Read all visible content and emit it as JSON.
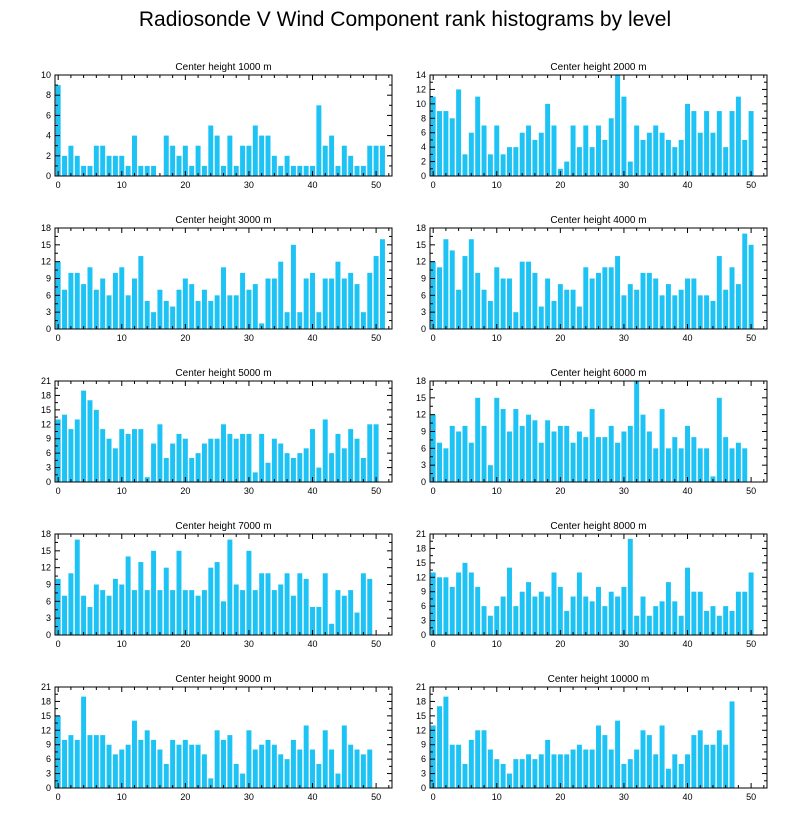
{
  "title": "Radiosonde V Wind Component rank histograms by level",
  "bar_color": "#1ec3f5",
  "chart_data": [
    {
      "type": "bar",
      "title": "Center height 1000 m",
      "ylim": [
        0,
        10
      ],
      "yticks": [
        0,
        2,
        4,
        6,
        8,
        10
      ],
      "xticks": [
        0,
        10,
        20,
        30,
        40,
        50
      ],
      "categories": [
        0,
        1,
        2,
        3,
        4,
        5,
        6,
        7,
        8,
        9,
        10,
        11,
        12,
        13,
        14,
        15,
        16,
        17,
        18,
        19,
        20,
        21,
        22,
        23,
        24,
        25,
        26,
        27,
        28,
        29,
        30,
        31,
        32,
        33,
        34,
        35,
        36,
        37,
        38,
        39,
        40,
        41,
        42,
        43,
        44,
        45,
        46,
        47,
        48,
        49,
        50,
        51
      ],
      "values": [
        9,
        2,
        3,
        2,
        1,
        1,
        3,
        3,
        2,
        2,
        2,
        1,
        4,
        1,
        1,
        1,
        0,
        4,
        3,
        2,
        3,
        1,
        3,
        1,
        5,
        4,
        1,
        4,
        1,
        3,
        3,
        5,
        4,
        4,
        2,
        1,
        2,
        1,
        1,
        1,
        1,
        7,
        3,
        4,
        1,
        3,
        2,
        1,
        1,
        3,
        3,
        3
      ]
    },
    {
      "type": "bar",
      "title": "Center height 2000 m",
      "ylim": [
        0,
        14
      ],
      "yticks": [
        0,
        2,
        4,
        6,
        8,
        10,
        12,
        14
      ],
      "xticks": [
        0,
        10,
        20,
        30,
        40,
        50
      ],
      "categories": [
        0,
        1,
        2,
        3,
        4,
        5,
        6,
        7,
        8,
        9,
        10,
        11,
        12,
        13,
        14,
        15,
        16,
        17,
        18,
        19,
        20,
        21,
        22,
        23,
        24,
        25,
        26,
        27,
        28,
        29,
        30,
        31,
        32,
        33,
        34,
        35,
        36,
        37,
        38,
        39,
        40,
        41,
        42,
        43,
        44,
        45,
        46,
        47,
        48,
        49,
        50,
        51
      ],
      "values": [
        11,
        9,
        9,
        8,
        12,
        3,
        6,
        11,
        7,
        3,
        7,
        3,
        4,
        4,
        6,
        7,
        5,
        6,
        10,
        7,
        1,
        2,
        7,
        4,
        7,
        4,
        7,
        5,
        8,
        14,
        11,
        2,
        7,
        5,
        6,
        7,
        6,
        5,
        4,
        5,
        10,
        9,
        6,
        9,
        6,
        9,
        4,
        9,
        11,
        5,
        9,
        0
      ]
    },
    {
      "type": "bar",
      "title": "Center height 3000 m",
      "ylim": [
        0,
        18
      ],
      "yticks": [
        0,
        3,
        6,
        9,
        12,
        15,
        18
      ],
      "xticks": [
        0,
        10,
        20,
        30,
        40,
        50
      ],
      "categories": [
        0,
        1,
        2,
        3,
        4,
        5,
        6,
        7,
        8,
        9,
        10,
        11,
        12,
        13,
        14,
        15,
        16,
        17,
        18,
        19,
        20,
        21,
        22,
        23,
        24,
        25,
        26,
        27,
        28,
        29,
        30,
        31,
        32,
        33,
        34,
        35,
        36,
        37,
        38,
        39,
        40,
        41,
        42,
        43,
        44,
        45,
        46,
        47,
        48,
        49,
        50,
        51
      ],
      "values": [
        12,
        7,
        10,
        10,
        8,
        11,
        7,
        9,
        6,
        10,
        11,
        6,
        9,
        13,
        5,
        3,
        7,
        5,
        4,
        7,
        9,
        8,
        5,
        7,
        5,
        6,
        11,
        6,
        6,
        10,
        7,
        8,
        1,
        9,
        9,
        12,
        3,
        15,
        3,
        9,
        10,
        3,
        9,
        9,
        12,
        9,
        10,
        8,
        3,
        10,
        13,
        16
      ]
    },
    {
      "type": "bar",
      "title": "Center height 4000 m",
      "ylim": [
        0,
        18
      ],
      "yticks": [
        0,
        3,
        6,
        9,
        12,
        15,
        18
      ],
      "xticks": [
        0,
        10,
        20,
        30,
        40,
        50
      ],
      "categories": [
        0,
        1,
        2,
        3,
        4,
        5,
        6,
        7,
        8,
        9,
        10,
        11,
        12,
        13,
        14,
        15,
        16,
        17,
        18,
        19,
        20,
        21,
        22,
        23,
        24,
        25,
        26,
        27,
        28,
        29,
        30,
        31,
        32,
        33,
        34,
        35,
        36,
        37,
        38,
        39,
        40,
        41,
        42,
        43,
        44,
        45,
        46,
        47,
        48,
        49,
        50,
        51
      ],
      "values": [
        12,
        11,
        16,
        14,
        7,
        13,
        16,
        10,
        7,
        5,
        11,
        9,
        9,
        3,
        12,
        12,
        10,
        4,
        9,
        5,
        8,
        7,
        7,
        4,
        11,
        9,
        10,
        11,
        11,
        13,
        6,
        8,
        7,
        10,
        10,
        9,
        6,
        8,
        6,
        7,
        9,
        9,
        6,
        6,
        5,
        13,
        7,
        11,
        8,
        17,
        15,
        0
      ]
    },
    {
      "type": "bar",
      "title": "Center height 5000 m",
      "ylim": [
        0,
        21
      ],
      "yticks": [
        0,
        3,
        6,
        9,
        12,
        15,
        18,
        21
      ],
      "xticks": [
        0,
        10,
        20,
        30,
        40,
        50
      ],
      "categories": [
        0,
        1,
        2,
        3,
        4,
        5,
        6,
        7,
        8,
        9,
        10,
        11,
        12,
        13,
        14,
        15,
        16,
        17,
        18,
        19,
        20,
        21,
        22,
        23,
        24,
        25,
        26,
        27,
        28,
        29,
        30,
        31,
        32,
        33,
        34,
        35,
        36,
        37,
        38,
        39,
        40,
        41,
        42,
        43,
        44,
        45,
        46,
        47,
        48,
        49,
        50,
        51
      ],
      "values": [
        13,
        14,
        11,
        13,
        19,
        17,
        15,
        11,
        9,
        7,
        11,
        10,
        11,
        11,
        1,
        8,
        12,
        5,
        8,
        10,
        9,
        5,
        6,
        8,
        9,
        9,
        12,
        10,
        9,
        10,
        10,
        2,
        10,
        4,
        9,
        8,
        6,
        5,
        6,
        7,
        11,
        3,
        13,
        6,
        10,
        7,
        11,
        9,
        5,
        12,
        12,
        0
      ]
    },
    {
      "type": "bar",
      "title": "Center height 6000 m",
      "ylim": [
        0,
        18
      ],
      "yticks": [
        0,
        3,
        6,
        9,
        12,
        15,
        18
      ],
      "xticks": [
        0,
        10,
        20,
        30,
        40,
        50
      ],
      "categories": [
        0,
        1,
        2,
        3,
        4,
        5,
        6,
        7,
        8,
        9,
        10,
        11,
        12,
        13,
        14,
        15,
        16,
        17,
        18,
        19,
        20,
        21,
        22,
        23,
        24,
        25,
        26,
        27,
        28,
        29,
        30,
        31,
        32,
        33,
        34,
        35,
        36,
        37,
        38,
        39,
        40,
        41,
        42,
        43,
        44,
        45,
        46,
        47,
        48,
        49,
        50,
        51
      ],
      "values": [
        12,
        7,
        6,
        10,
        9,
        10,
        7,
        15,
        10,
        3,
        15,
        13,
        9,
        13,
        10,
        12,
        11,
        7,
        11,
        9,
        10,
        10,
        7,
        9,
        8,
        13,
        8,
        8,
        10,
        7,
        9,
        10,
        18,
        12,
        9,
        6,
        13,
        6,
        8,
        6,
        10,
        8,
        6,
        6,
        1,
        15,
        8,
        6,
        7,
        6,
        0,
        0
      ]
    },
    {
      "type": "bar",
      "title": "Center height 7000 m",
      "ylim": [
        0,
        18
      ],
      "yticks": [
        0,
        3,
        6,
        9,
        12,
        15,
        18
      ],
      "xticks": [
        0,
        10,
        20,
        30,
        40,
        50
      ],
      "categories": [
        0,
        1,
        2,
        3,
        4,
        5,
        6,
        7,
        8,
        9,
        10,
        11,
        12,
        13,
        14,
        15,
        16,
        17,
        18,
        19,
        20,
        21,
        22,
        23,
        24,
        25,
        26,
        27,
        28,
        29,
        30,
        31,
        32,
        33,
        34,
        35,
        36,
        37,
        38,
        39,
        40,
        41,
        42,
        43,
        44,
        45,
        46,
        47,
        48,
        49,
        50,
        51
      ],
      "values": [
        10,
        7,
        11,
        17,
        7,
        5,
        9,
        8,
        7,
        10,
        9,
        14,
        8,
        13,
        8,
        15,
        8,
        12,
        8,
        15,
        8,
        8,
        7,
        8,
        12,
        13,
        6,
        17,
        9,
        8,
        15,
        8,
        11,
        11,
        8,
        9,
        11,
        7,
        11,
        10,
        5,
        5,
        11,
        2,
        8,
        7,
        8,
        4,
        11,
        10,
        0,
        0
      ]
    },
    {
      "type": "bar",
      "title": "Center height 8000 m",
      "ylim": [
        0,
        21
      ],
      "yticks": [
        0,
        3,
        6,
        9,
        12,
        15,
        18,
        21
      ],
      "xticks": [
        0,
        10,
        20,
        30,
        40,
        50
      ],
      "categories": [
        0,
        1,
        2,
        3,
        4,
        5,
        6,
        7,
        8,
        9,
        10,
        11,
        12,
        13,
        14,
        15,
        16,
        17,
        18,
        19,
        20,
        21,
        22,
        23,
        24,
        25,
        26,
        27,
        28,
        29,
        30,
        31,
        32,
        33,
        34,
        35,
        36,
        37,
        38,
        39,
        40,
        41,
        42,
        43,
        44,
        45,
        46,
        47,
        48,
        49,
        50,
        51
      ],
      "values": [
        13,
        12,
        12,
        10,
        13,
        15,
        13,
        10,
        6,
        4,
        6,
        8,
        14,
        6,
        9,
        11,
        8,
        9,
        8,
        13,
        10,
        5,
        8,
        13,
        8,
        7,
        10,
        6,
        9,
        8,
        10,
        20,
        4,
        8,
        4,
        6,
        7,
        11,
        7,
        4,
        14,
        9,
        9,
        5,
        6,
        4,
        6,
        5,
        9,
        9,
        13,
        0
      ]
    },
    {
      "type": "bar",
      "title": "Center height 9000 m",
      "ylim": [
        0,
        21
      ],
      "yticks": [
        0,
        3,
        6,
        9,
        12,
        15,
        18,
        21
      ],
      "xticks": [
        0,
        10,
        20,
        30,
        40,
        50
      ],
      "categories": [
        0,
        1,
        2,
        3,
        4,
        5,
        6,
        7,
        8,
        9,
        10,
        11,
        12,
        13,
        14,
        15,
        16,
        17,
        18,
        19,
        20,
        21,
        22,
        23,
        24,
        25,
        26,
        27,
        28,
        29,
        30,
        31,
        32,
        33,
        34,
        35,
        36,
        37,
        38,
        39,
        40,
        41,
        42,
        43,
        44,
        45,
        46,
        47,
        48,
        49,
        50,
        51
      ],
      "values": [
        15,
        10,
        11,
        10,
        19,
        11,
        11,
        11,
        9,
        7,
        8,
        9,
        14,
        10,
        12,
        10,
        8,
        5,
        10,
        9,
        10,
        9,
        9,
        7,
        2,
        12,
        10,
        11,
        5,
        3,
        12,
        8,
        9,
        10,
        9,
        7,
        6,
        10,
        8,
        13,
        8,
        5,
        12,
        8,
        3,
        13,
        9,
        8,
        7,
        8,
        0,
        0
      ]
    },
    {
      "type": "bar",
      "title": "Center height 10000 m",
      "ylim": [
        0,
        21
      ],
      "yticks": [
        0,
        3,
        6,
        9,
        12,
        15,
        18,
        21
      ],
      "xticks": [
        0,
        10,
        20,
        30,
        40,
        50
      ],
      "categories": [
        0,
        1,
        2,
        3,
        4,
        5,
        6,
        7,
        8,
        9,
        10,
        11,
        12,
        13,
        14,
        15,
        16,
        17,
        18,
        19,
        20,
        21,
        22,
        23,
        24,
        25,
        26,
        27,
        28,
        29,
        30,
        31,
        32,
        33,
        34,
        35,
        36,
        37,
        38,
        39,
        40,
        41,
        42,
        43,
        44,
        45,
        46,
        47,
        48,
        49,
        50,
        51
      ],
      "values": [
        13,
        17,
        19,
        9,
        9,
        5,
        10,
        12,
        12,
        8,
        6,
        5,
        3,
        6,
        6,
        7,
        6,
        7,
        10,
        7,
        7,
        7,
        8,
        9,
        8,
        8,
        13,
        11,
        8,
        14,
        5,
        6,
        8,
        12,
        11,
        7,
        13,
        4,
        7,
        5,
        7,
        11,
        12,
        9,
        9,
        12,
        9,
        18,
        0,
        0,
        0,
        0
      ]
    }
  ]
}
